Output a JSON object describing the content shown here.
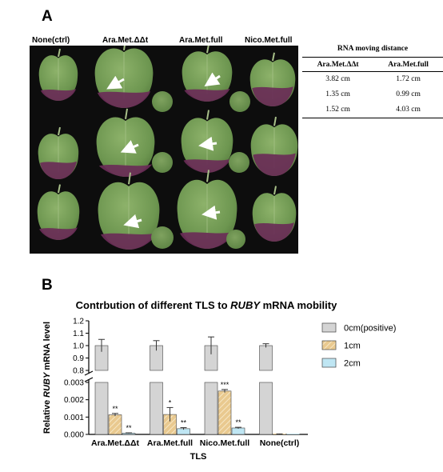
{
  "panel_a": {
    "label": "A",
    "columns": [
      "None(ctrl)",
      "Ara.Met.ΔΔt",
      "Ara.Met.full",
      "Nico.Met.full"
    ],
    "table": {
      "title": "RNA moving distance",
      "headers": [
        "Ara.Met.ΔΔt",
        "Ara.Met.full"
      ],
      "rows": [
        [
          "3.82 cm",
          "1.72 cm"
        ],
        [
          "1.35 cm",
          "0.99 cm"
        ],
        [
          "1.52 cm",
          "4.03 cm"
        ]
      ]
    }
  },
  "panel_b": {
    "label": "B",
    "title_prefix": "Contrbution of different TLS to ",
    "title_italic": "RUBY",
    "title_suffix": " mRNA mobility"
  },
  "chart_data": {
    "type": "bar",
    "title": "Contrbution of different TLS to RUBY mRNA mobility",
    "xlabel": "TLS",
    "ylabel_prefix": "Relative ",
    "ylabel_italic": "RUBY",
    "ylabel_suffix": " mRNA level",
    "categories": [
      "Ara.Met.ΔΔt",
      "Ara.Met.full",
      "Nico.Met.full",
      "None(ctrl)"
    ],
    "broken_axis": true,
    "upper_ylim": [
      0.8,
      1.2
    ],
    "upper_ticks": [
      "0.8",
      "0.9",
      "1.0",
      "1.1",
      "1.2"
    ],
    "lower_ylim": [
      0,
      0.003
    ],
    "lower_ticks": [
      "0.000",
      "0.001",
      "0.002",
      "0.003"
    ],
    "legend_position": "right",
    "series": [
      {
        "name": "0cm(positive)",
        "color": "#d4d4d4",
        "hatch": false,
        "values": [
          1.0,
          1.0,
          1.0,
          1.0
        ],
        "errors": [
          0.05,
          0.04,
          0.07,
          0.015
        ],
        "significance": [
          "",
          "",
          "",
          ""
        ]
      },
      {
        "name": "1cm",
        "color": "#e9c98f",
        "hatch": true,
        "values": [
          0.00113,
          0.00115,
          0.0025,
          2e-05
        ],
        "errors": [
          8e-05,
          0.0004,
          9e-05,
          1e-05
        ],
        "significance": [
          "**",
          "*",
          "***",
          ""
        ]
      },
      {
        "name": "2cm",
        "color": "#bfe6f3",
        "hatch": false,
        "values": [
          7e-05,
          0.00033,
          0.00037,
          0.0
        ],
        "errors": [
          2e-05,
          6e-05,
          4e-05,
          0.0
        ],
        "significance": [
          "**",
          "**",
          "**",
          ""
        ]
      }
    ]
  }
}
